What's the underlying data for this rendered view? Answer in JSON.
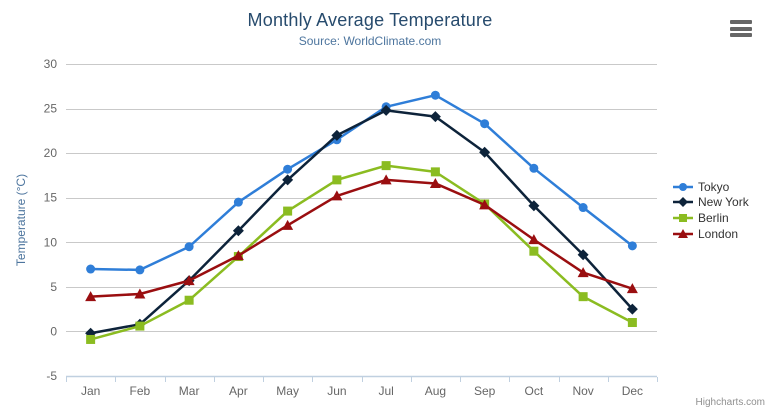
{
  "chart": {
    "title": "Monthly Average Temperature",
    "subtitle": "Source: WorldClimate.com",
    "credit": "Highcharts.com",
    "menu_icon": "hamburger-icon"
  },
  "colors": {
    "title": "#274b6d",
    "subtitle": "#4d759e",
    "axis_title": "#4d759e",
    "axis_label": "#666666",
    "grid": "#c9c9c9",
    "axis_line": "#c0d0e0",
    "legend_text": "#333333",
    "credit": "#909090",
    "menu": "#666666"
  },
  "chart_data": {
    "type": "line",
    "title": "Monthly Average Temperature",
    "subtitle": "Source: WorldClimate.com",
    "categories": [
      "Jan",
      "Feb",
      "Mar",
      "Apr",
      "May",
      "Jun",
      "Jul",
      "Aug",
      "Sep",
      "Oct",
      "Nov",
      "Dec"
    ],
    "series": [
      {
        "name": "Tokyo",
        "color": "#2f7ed8",
        "marker": "circle",
        "values": [
          7.0,
          6.9,
          9.5,
          14.5,
          18.2,
          21.5,
          25.2,
          26.5,
          23.3,
          18.3,
          13.9,
          9.6
        ]
      },
      {
        "name": "New York",
        "color": "#0d233a",
        "marker": "diamond",
        "values": [
          -0.2,
          0.8,
          5.7,
          11.3,
          17.0,
          22.0,
          24.8,
          24.1,
          20.1,
          14.1,
          8.6,
          2.5
        ]
      },
      {
        "name": "Berlin",
        "color": "#8bbc21",
        "marker": "square",
        "values": [
          -0.9,
          0.6,
          3.5,
          8.4,
          13.5,
          17.0,
          18.6,
          17.9,
          14.3,
          9.0,
          3.9,
          1.0
        ]
      },
      {
        "name": "London",
        "color": "#9a0e10",
        "marker": "triangle",
        "values": [
          3.9,
          4.2,
          5.7,
          8.5,
          11.9,
          15.2,
          17.0,
          16.6,
          14.2,
          10.3,
          6.6,
          4.8
        ]
      }
    ],
    "xlabel": "",
    "ylabel": "Temperature (°C)",
    "ylim": [
      -5,
      30
    ],
    "ytick_interval": 5,
    "grid": "horizontal",
    "legend_position": "right"
  }
}
